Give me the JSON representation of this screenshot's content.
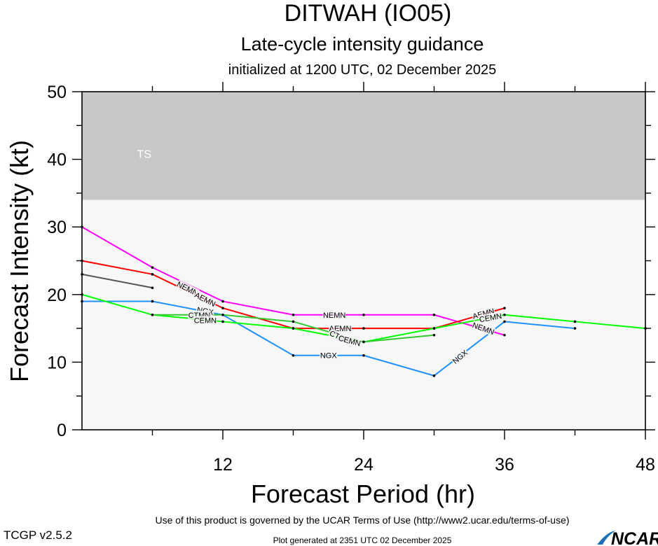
{
  "chart_data": {
    "type": "line",
    "title": "DITWAH (IO05)",
    "subtitle": "Late-cycle intensity guidance",
    "subsubtitle": "initialized at 1200 UTC, 02 December 2025",
    "xlabel": "Forecast Period (hr)",
    "ylabel": "Forecast Intensity (kt)",
    "xlim": [
      0,
      48
    ],
    "ylim": [
      0,
      50
    ],
    "xticks": [
      12,
      24,
      36,
      48
    ],
    "yticks": [
      0,
      10,
      20,
      30,
      40,
      50
    ],
    "grid": false,
    "bands": [
      {
        "label": "TS",
        "from": 34,
        "to": 50,
        "color": "#c8c8c8"
      },
      {
        "label": "",
        "from": 0,
        "to": 34,
        "color": "#f7f7f7"
      }
    ],
    "series": [
      {
        "name": "NEMN",
        "color": "#ff00ff",
        "points": [
          [
            0,
            30
          ],
          [
            6,
            24
          ],
          [
            12,
            19
          ],
          [
            18,
            17
          ],
          [
            24,
            17
          ],
          [
            30,
            17
          ],
          [
            36,
            14
          ]
        ]
      },
      {
        "name": "AEMN",
        "color": "#ff0000",
        "points": [
          [
            0,
            25
          ],
          [
            6,
            23
          ],
          [
            12,
            18
          ],
          [
            18,
            15
          ],
          [
            24,
            15
          ],
          [
            30,
            15
          ],
          [
            36,
            18
          ]
        ]
      },
      {
        "name": "NGX",
        "color": "#1e90ff",
        "points": [
          [
            0,
            19
          ],
          [
            6,
            19
          ],
          [
            12,
            17
          ],
          [
            18,
            11
          ],
          [
            24,
            11
          ],
          [
            30,
            8
          ],
          [
            36,
            16
          ],
          [
            42,
            15
          ]
        ]
      },
      {
        "name": "CEMN",
        "color": "#00ff00",
        "points": [
          [
            0,
            20
          ],
          [
            6,
            17
          ],
          [
            12,
            16
          ],
          [
            18,
            15
          ],
          [
            24,
            13
          ],
          [
            30,
            15
          ],
          [
            36,
            17
          ],
          [
            42,
            16
          ],
          [
            48,
            15
          ]
        ]
      },
      {
        "name": "CTMN",
        "color": "#32c832",
        "points": [
          [
            6,
            17
          ],
          [
            12,
            17
          ],
          [
            18,
            16
          ],
          [
            24,
            13
          ],
          [
            30,
            14
          ]
        ]
      },
      {
        "name": "",
        "color": "#555555",
        "points": [
          [
            0,
            23
          ],
          [
            6,
            21
          ]
        ]
      }
    ],
    "labels": [
      {
        "text": "NEMN",
        "series": 0,
        "x": 9,
        "y": 20.9,
        "rotate": 27
      },
      {
        "text": "AEMN",
        "series": 1,
        "x": 10.5,
        "y": 19.3,
        "rotate": 27
      },
      {
        "text": "NGX",
        "series": 2,
        "x": 10.5,
        "y": 17.6,
        "rotate": 10
      },
      {
        "text": "CTMN",
        "series": 4,
        "x": 10.0,
        "y": 17.0,
        "rotate": 0
      },
      {
        "text": "CEMN",
        "series": 3,
        "x": 10.5,
        "y": 16.2,
        "rotate": 0
      },
      {
        "text": "NEMN",
        "series": 0,
        "x": 21.5,
        "y": 17,
        "rotate": 0
      },
      {
        "text": "AEMN",
        "series": 1,
        "x": 22.0,
        "y": 15,
        "rotate": 0
      },
      {
        "text": "NGX",
        "series": 2,
        "x": 21.0,
        "y": 11,
        "rotate": 0
      },
      {
        "text": "CTMN",
        "series": 4,
        "x": 22.0,
        "y": 13.7,
        "rotate": 25
      },
      {
        "text": "CEMN",
        "series": 3,
        "x": 22.8,
        "y": 13.2,
        "rotate": 15
      },
      {
        "text": "NGX",
        "series": 2,
        "x": 32.2,
        "y": 10.8,
        "rotate": -40
      },
      {
        "text": "AEMN",
        "series": 1,
        "x": 34.2,
        "y": 17.2,
        "rotate": -15
      },
      {
        "text": "CEMN",
        "series": 3,
        "x": 34.8,
        "y": 16.6,
        "rotate": -10
      },
      {
        "text": "NEMN",
        "series": 0,
        "x": 34.2,
        "y": 15.0,
        "rotate": 20
      }
    ]
  },
  "footer": {
    "terms": "Use of this product is governed by the UCAR Terms of Use (http://www2.ucar.edu/terms-of-use)",
    "version": "TCGP v2.5.2",
    "generated": "Plot generated at 2351 UTC   02 December 2025",
    "logo": "NCAR"
  }
}
